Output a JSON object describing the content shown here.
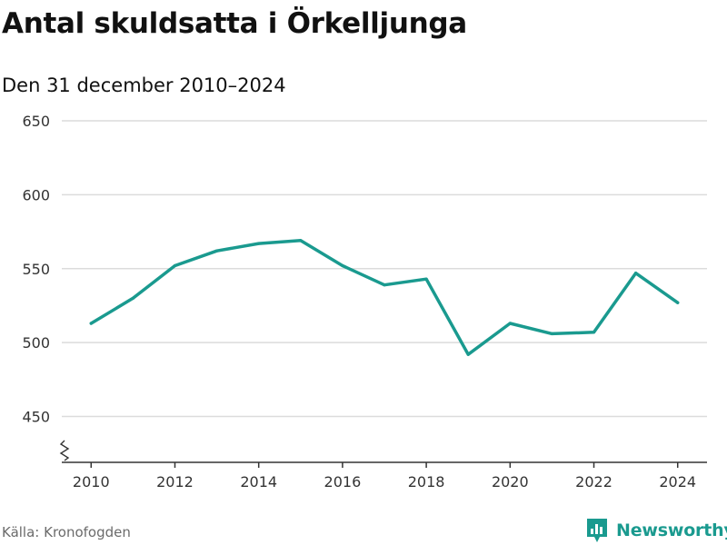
{
  "header": {
    "title": "Antal skuldsatta i Örkelljunga",
    "subtitle": "Den 31 december 2010–2024"
  },
  "footer": {
    "source": "Källa: Kronofogden",
    "brand": "Newsworthy",
    "brand_icon": "bar-chart-logo-icon"
  },
  "colors": {
    "line": "#1a9a8f",
    "grid": "#dcdcdc",
    "axis": "#333333",
    "brand": "#1a9a8f"
  },
  "chart_data": {
    "type": "line",
    "title": "Antal skuldsatta i Örkelljunga",
    "subtitle": "Den 31 december 2010–2024",
    "xlabel": "",
    "ylabel": "",
    "x": [
      2010,
      2011,
      2012,
      2013,
      2014,
      2015,
      2016,
      2017,
      2018,
      2019,
      2020,
      2021,
      2022,
      2023,
      2024
    ],
    "series": [
      {
        "values": [
          513,
          530,
          552,
          562,
          567,
          569,
          552,
          539,
          543,
          492,
          513,
          506,
          507,
          547,
          527
        ]
      }
    ],
    "x_ticks": [
      2010,
      2012,
      2014,
      2016,
      2018,
      2020,
      2022,
      2024
    ],
    "y_ticks": [
      450,
      500,
      550,
      600,
      650
    ],
    "ylim": [
      419,
      650
    ],
    "xlim": [
      2009.3,
      2024.7
    ],
    "grid": true,
    "y_axis_break": true
  }
}
